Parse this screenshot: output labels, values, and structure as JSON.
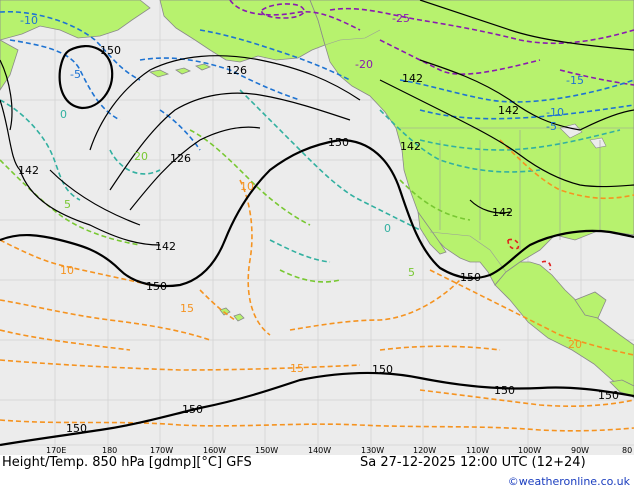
{
  "map": {
    "title": "Height/Temp. 850 hPa [gdmp][°C] GFS",
    "valid": "Sa 27-12-2025 12:00 UTC (12+24)",
    "credit": "©weatheronline.co.uk",
    "longitude_ticks": [
      "170E",
      "180",
      "170W",
      "160W",
      "150W",
      "140W",
      "130W",
      "120W",
      "110W",
      "100W",
      "90W",
      "80"
    ],
    "height_labels": [
      "150",
      "126",
      "126",
      "142",
      "142",
      "142",
      "150",
      "150",
      "142",
      "150",
      "150",
      "150",
      "150",
      "150",
      "150",
      "142",
      "142"
    ],
    "temp_labels": [
      "-10",
      "-5",
      "0",
      "5",
      "10",
      "15",
      "20",
      "-25",
      "-20",
      "-15",
      "-10",
      "-5",
      "0",
      "5",
      "10",
      "15",
      "20"
    ],
    "colors": {
      "ocean": "#ececec",
      "land": "#b7f26e",
      "height_contour": "#000000",
      "temp_negative": "#1e73d2",
      "temp_zero": "#32b0a0",
      "temp_positive": "#f59320",
      "temp_cold": "#8a1ab0"
    }
  }
}
